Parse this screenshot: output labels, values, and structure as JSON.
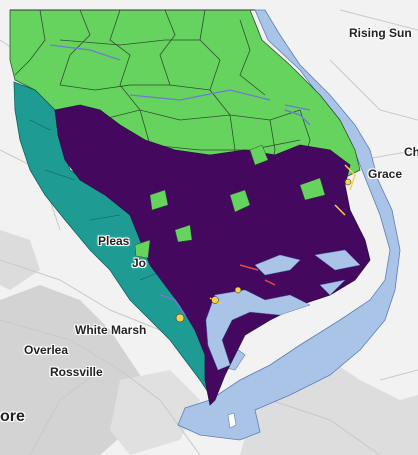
{
  "map": {
    "place_labels": [
      {
        "id": "rising-sun",
        "text": "Rising Sun"
      },
      {
        "id": "grace",
        "text": "Grace"
      },
      {
        "id": "ch",
        "text": "Ch"
      },
      {
        "id": "pleas",
        "text": "Pleas"
      },
      {
        "id": "jo",
        "text": "Jo"
      },
      {
        "id": "white-marsh",
        "text": "White Marsh"
      },
      {
        "id": "overlea",
        "text": "Overlea"
      },
      {
        "id": "rossville",
        "text": "Rossville"
      },
      {
        "id": "ore",
        "text": "ore"
      }
    ],
    "colors": {
      "basemap": "#f2f2f2",
      "roads": "#d0d0d0",
      "urban": "#c8c8c8",
      "water": "#a9c4e6",
      "water_edge": "#5a7fb8",
      "north_zone": "#66d35e",
      "north_zone_lines": "#2f4f2f",
      "west_strip": "#1e9c93",
      "central_zone": "#45085f",
      "central_zone_lines": "#2a1540",
      "accent_yellow": "#f4d34a",
      "accent_red": "#e04a4a",
      "accent_blue": "#6e79d6"
    }
  }
}
